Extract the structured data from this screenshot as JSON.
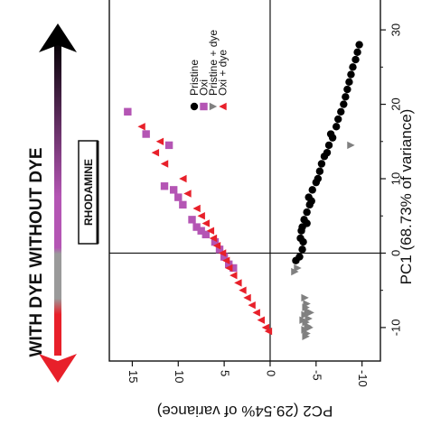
{
  "colors": {
    "pristine": "#000000",
    "oxi": "#b455b4",
    "pristine_dye": "#808080",
    "oxi_dye": "#e8202a",
    "arrow_top": "#000000",
    "arrow_mid": "#b455b4",
    "arrow_low": "#9a9a9a",
    "arrow_bottom": "#e8202a"
  },
  "labels": {
    "without_dye": "WITHOUT DYE",
    "with_dye": "WITH DYE",
    "rhodamine": "RHODAMINE"
  },
  "chart_data": {
    "type": "scatter",
    "orientation": "rotated 90° clockwise: PC1 runs along the vertical, PC2 along the horizontal (reversed)",
    "xlabel": "PC1 (68.73% of variance)",
    "ylabel": "PC2 (29.54% of variance)",
    "xlim": [
      -14.5,
      34.5
    ],
    "ylim": [
      -12,
      17.5
    ],
    "xticks": [
      "-10",
      "0",
      "10",
      "20",
      "30"
    ],
    "yticks": [
      "15",
      "10",
      "5",
      "0",
      "-5",
      "-10"
    ],
    "reference_lines": {
      "x": 0,
      "y": 0
    },
    "legend_position": "top-right",
    "series": [
      {
        "name": "Pristine",
        "marker": "circle",
        "color_key": "pristine",
        "points": [
          [
            -1,
            -2.8
          ],
          [
            -0.5,
            -3.2
          ],
          [
            0.5,
            -3.5
          ],
          [
            1.5,
            -3.6
          ],
          [
            2,
            -3.3
          ],
          [
            3,
            -3.4
          ],
          [
            3.5,
            -3.5
          ],
          [
            4,
            -4.0
          ],
          [
            4.5,
            -3.7
          ],
          [
            5.5,
            -4.0
          ],
          [
            6.5,
            -4.3
          ],
          [
            7,
            -4.5
          ],
          [
            7.5,
            -4.2
          ],
          [
            8.5,
            -4.6
          ],
          [
            9.5,
            -5.0
          ],
          [
            10,
            -5.2
          ],
          [
            11,
            -5.4
          ],
          [
            12,
            -5.6
          ],
          [
            13,
            -5.9
          ],
          [
            13.5,
            -6.2
          ],
          [
            14.5,
            -6.4
          ],
          [
            15.5,
            -6.8
          ],
          [
            16,
            -6.6
          ],
          [
            17,
            -7.2
          ],
          [
            18,
            -7.4
          ],
          [
            19,
            -7.7
          ],
          [
            20,
            -8.0
          ],
          [
            21,
            -8.2
          ],
          [
            22,
            -8.4
          ],
          [
            23,
            -8.6
          ],
          [
            24,
            -8.8
          ],
          [
            25,
            -9.0
          ],
          [
            26,
            -9.3
          ],
          [
            27,
            -9.5
          ],
          [
            28,
            -9.7
          ]
        ]
      },
      {
        "name": "Oxi",
        "marker": "square",
        "color_key": "oxi",
        "points": [
          [
            19,
            15.5
          ],
          [
            16,
            13.5
          ],
          [
            14.5,
            11.0
          ],
          [
            9,
            11.5
          ],
          [
            8.5,
            10.5
          ],
          [
            7.5,
            10.0
          ],
          [
            6.5,
            9.5
          ],
          [
            4.5,
            8.5
          ],
          [
            3.5,
            8.0
          ],
          [
            3,
            7.5
          ],
          [
            2.5,
            7.0
          ],
          [
            1.5,
            6.0
          ],
          [
            0.5,
            5.5
          ],
          [
            -0.5,
            5.0
          ],
          [
            -1.5,
            4.5
          ],
          [
            -2,
            4.0
          ]
        ]
      },
      {
        "name": "Pristine + dye",
        "marker": "triangle-down",
        "color_key": "pristine_dye",
        "points": [
          [
            14.5,
            -8.8
          ],
          [
            -2,
            -3.0
          ],
          [
            -2.5,
            -2.7
          ],
          [
            -6,
            -3.8
          ],
          [
            -6.8,
            -4.0
          ],
          [
            -7.3,
            -3.9
          ],
          [
            -7.8,
            -4.1
          ],
          [
            -8.3,
            -3.8
          ],
          [
            -8.8,
            -4.2
          ],
          [
            -9.3,
            -3.9
          ],
          [
            -9.8,
            -4.1
          ],
          [
            -10.3,
            -3.8
          ],
          [
            -10.8,
            -4.0
          ],
          [
            -11.2,
            -3.9
          ],
          [
            -10,
            -4.3
          ],
          [
            -9,
            -3.6
          ],
          [
            -8,
            -4.4
          ]
        ]
      },
      {
        "name": "Oxi + dye",
        "marker": "triangle-left",
        "color_key": "oxi_dye",
        "points": [
          [
            17,
            14.0
          ],
          [
            15,
            12.0
          ],
          [
            13.5,
            12.5
          ],
          [
            12,
            11.5
          ],
          [
            10,
            9.5
          ],
          [
            8,
            9.0
          ],
          [
            6,
            8.0
          ],
          [
            5,
            7.5
          ],
          [
            4,
            7.0
          ],
          [
            3,
            6.5
          ],
          [
            2,
            6.2
          ],
          [
            1,
            5.8
          ],
          [
            0,
            5.2
          ],
          [
            -1,
            4.8
          ],
          [
            -2,
            4.5
          ],
          [
            -3,
            4.0
          ],
          [
            -4,
            3.5
          ],
          [
            -5,
            3.0
          ],
          [
            -6,
            2.5
          ],
          [
            -7,
            2.0
          ],
          [
            -8,
            1.5
          ],
          [
            -9,
            1.0
          ],
          [
            -10,
            0.5
          ],
          [
            -10.5,
            0.2
          ]
        ]
      }
    ]
  }
}
